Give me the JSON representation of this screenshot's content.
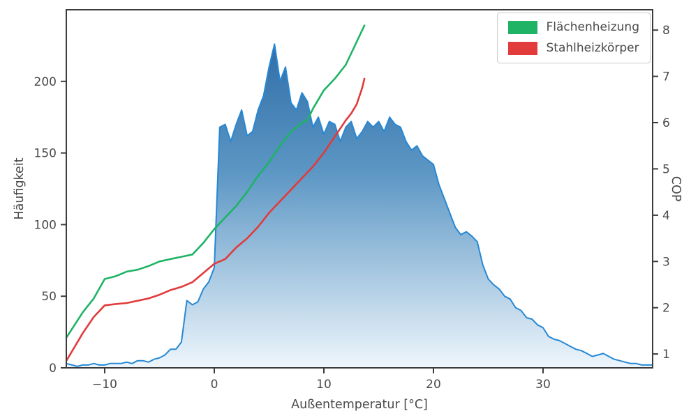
{
  "chart_data": {
    "type": "composite",
    "description": "Histogram of outdoor temperature frequency (left axis) with heat pump COP curves for two heating system types (right axis)",
    "x_axis": {
      "label": "Außentemperatur [°C]",
      "range": [
        -13.5,
        40
      ],
      "ticks": [
        -10,
        0,
        10,
        20,
        30
      ]
    },
    "y_left_axis": {
      "label": "Häufigkeit",
      "range": [
        0,
        250
      ],
      "ticks": [
        0,
        50,
        100,
        150,
        200
      ]
    },
    "y_right_axis": {
      "label": "COP",
      "range": [
        0.7,
        8.44
      ],
      "ticks": [
        1,
        2,
        3,
        4,
        5,
        6,
        7,
        8
      ]
    },
    "grid": false,
    "colors": {
      "text": "#4a4a4a",
      "spine": "#3b3b3b",
      "histogram_line": "#2688d4",
      "green_line": "#1fb365",
      "red_line": "#e13b3b"
    },
    "series": [
      {
        "name": "Häufigkeit",
        "type": "area",
        "axis": "left",
        "color": "#2688d4",
        "fill_gradient": [
          "#25639f",
          "#5b96c4",
          "#eef6fc"
        ],
        "x_start": -13.5,
        "x_step": 0.5,
        "y": [
          3,
          2,
          1,
          2,
          2,
          3,
          2,
          2,
          3,
          3,
          3,
          4,
          3,
          5,
          5,
          4,
          6,
          7,
          9,
          13,
          13,
          18,
          47,
          44,
          46,
          55,
          60,
          70,
          168,
          170,
          158,
          170,
          180,
          162,
          165,
          180,
          190,
          210,
          226,
          200,
          210,
          185,
          180,
          192,
          186,
          168,
          175,
          163,
          172,
          170,
          158,
          168,
          172,
          160,
          165,
          172,
          168,
          172,
          165,
          175,
          170,
          168,
          158,
          152,
          155,
          148,
          145,
          142,
          128,
          118,
          108,
          98,
          93,
          95,
          92,
          88,
          72,
          62,
          58,
          55,
          50,
          48,
          42,
          40,
          35,
          34,
          30,
          28,
          22,
          20,
          19,
          17,
          15,
          13,
          12,
          10,
          8,
          9,
          10,
          8,
          6,
          5,
          4,
          3,
          3,
          2,
          2,
          2
        ]
      },
      {
        "name": "Flächenheizung",
        "type": "line",
        "axis": "right",
        "color": "#1fb365",
        "x": [
          -13.5,
          -12,
          -11,
          -10,
          -9,
          -8,
          -7,
          -6,
          -5,
          -4,
          -3,
          -2,
          -1,
          0,
          1,
          2,
          3,
          4,
          5,
          6,
          7,
          8,
          8.5,
          9,
          10,
          11,
          12,
          13,
          13.7
        ],
        "y": [
          1.35,
          1.9,
          2.2,
          2.62,
          2.68,
          2.78,
          2.82,
          2.9,
          3.0,
          3.05,
          3.1,
          3.15,
          3.4,
          3.7,
          3.95,
          4.2,
          4.5,
          4.85,
          5.15,
          5.5,
          5.8,
          6.0,
          6.05,
          6.3,
          6.7,
          6.95,
          7.25,
          7.75,
          8.1
        ]
      },
      {
        "name": "Stahlheizkörper",
        "type": "line",
        "axis": "right",
        "color": "#e13b3b",
        "x": [
          -13.5,
          -12,
          -11,
          -10,
          -9,
          -8,
          -7,
          -6,
          -5,
          -4,
          -3,
          -2,
          -1,
          0,
          1,
          2,
          3,
          4,
          5,
          6,
          7,
          8,
          9,
          10,
          11,
          12,
          12.5,
          13,
          13.5,
          13.7
        ],
        "y": [
          0.85,
          1.45,
          1.8,
          2.05,
          2.08,
          2.1,
          2.15,
          2.2,
          2.28,
          2.38,
          2.45,
          2.55,
          2.75,
          2.95,
          3.05,
          3.3,
          3.5,
          3.75,
          4.05,
          4.3,
          4.55,
          4.8,
          5.05,
          5.35,
          5.7,
          6.05,
          6.2,
          6.4,
          6.75,
          6.95
        ]
      }
    ],
    "legend": {
      "position": "upper right",
      "entries": [
        {
          "label": "Flächenheizung",
          "color": "#1fb365"
        },
        {
          "label": "Stahlheizkörper",
          "color": "#e13b3b"
        }
      ]
    }
  }
}
